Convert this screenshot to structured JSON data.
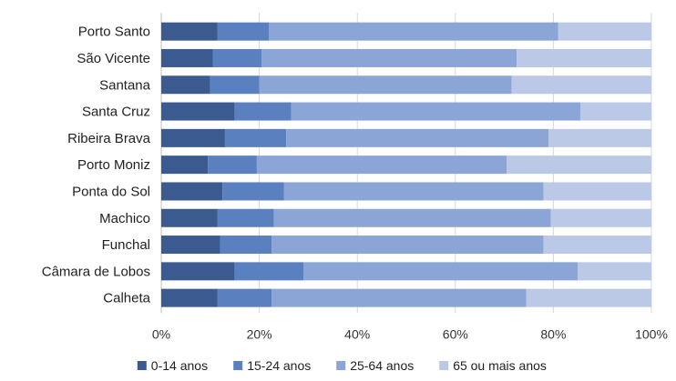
{
  "chart_data": {
    "type": "bar",
    "orientation": "horizontal",
    "stacked": "percent",
    "categories": [
      "Porto Santo",
      "São Vicente",
      "Santana",
      "Santa Cruz",
      "Ribeira Brava",
      "Porto Moniz",
      "Ponta do Sol",
      "Machico",
      "Funchal",
      "Câmara de Lobos",
      "Calheta"
    ],
    "series": [
      {
        "name": "0-14 anos",
        "color": "#3b5a8f",
        "values": [
          11.5,
          10.5,
          10,
          15,
          13,
          9.5,
          12.5,
          11.5,
          12,
          15,
          11.5
        ]
      },
      {
        "name": "15-24 anos",
        "color": "#5a80c0",
        "values": [
          10.5,
          10,
          10,
          11.5,
          12.5,
          10,
          12.5,
          11.5,
          10.5,
          14,
          11
        ]
      },
      {
        "name": "25-64 anos",
        "color": "#8ba6d6",
        "values": [
          59,
          52,
          51.5,
          59,
          53.5,
          51,
          53,
          56.5,
          55.5,
          56,
          52
        ]
      },
      {
        "name": "65 ou mais anos",
        "color": "#bcc9e6",
        "values": [
          19,
          27.5,
          28.5,
          14.5,
          21,
          29.5,
          22,
          20.5,
          22,
          15,
          25.5
        ]
      }
    ],
    "xlim": [
      0,
      100
    ],
    "x_ticks": [
      "0%",
      "20%",
      "40%",
      "60%",
      "80%",
      "100%"
    ],
    "grid": true,
    "legend_position": "bottom",
    "title": "",
    "xlabel": "",
    "ylabel": ""
  }
}
